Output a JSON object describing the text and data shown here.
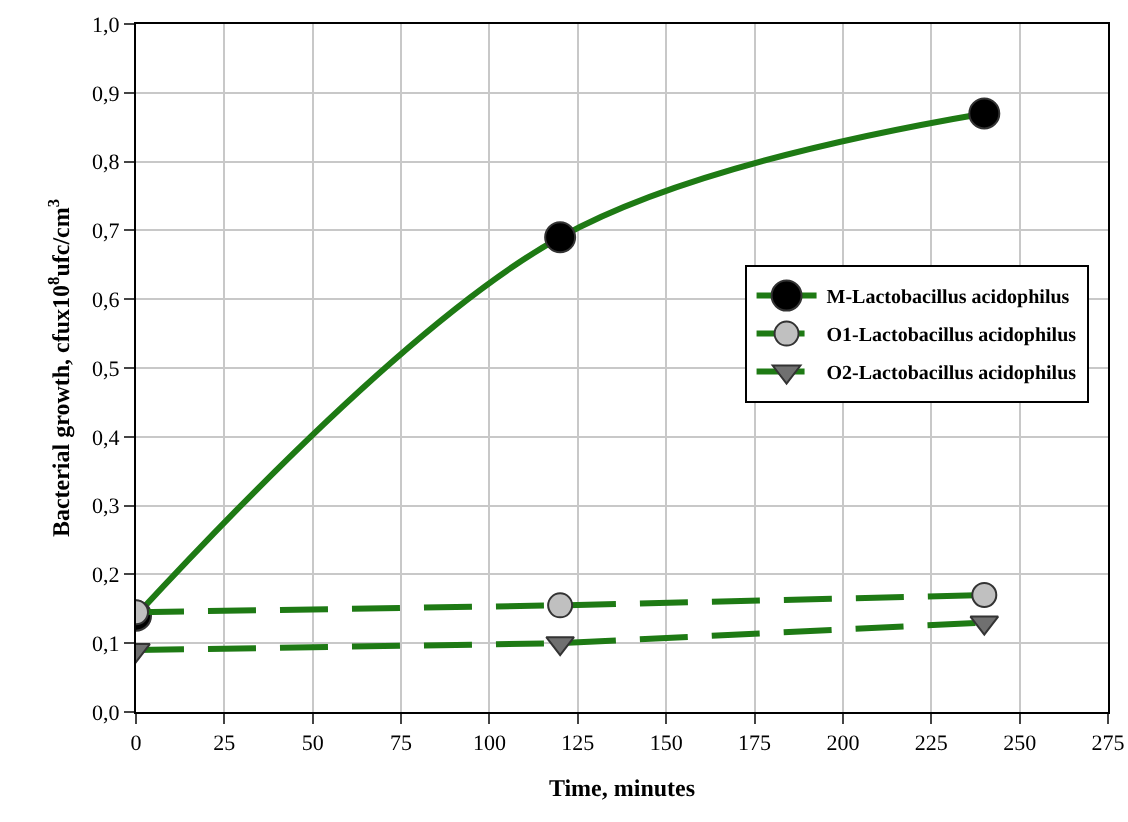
{
  "chart_data": {
    "type": "line",
    "xlabel": "Time, minutes",
    "ylabel": "Bacterial growth, cfux10$^{8}$ufc/cm$^{3}$",
    "x": [
      0,
      120,
      240
    ],
    "series": [
      {
        "name": "M-Lactobacillus acidophilus",
        "color": "#1e7a14",
        "colors": [
          "#000000",
          "#000000",
          "#000000"
        ],
        "marker": "circle",
        "line_style": "solid",
        "values": [
          0.14,
          0.69,
          0.87
        ]
      },
      {
        "name": "O1-Lactobacillus acidophilus",
        "color": "#1e7a14",
        "colors": [
          "#c0c0c0",
          "#c0c0c0",
          "#c0c0c0"
        ],
        "marker": "circle",
        "line_style": "dashed",
        "values": [
          0.145,
          0.155,
          0.17
        ]
      },
      {
        "name": "O2-Lactobacillus acidophilus",
        "color": "#1e7a14",
        "colors": [
          "#707070",
          "#707070",
          "#707070"
        ],
        "marker": "triangle",
        "line_style": "dashed",
        "values": [
          0.09,
          0.1,
          0.13
        ]
      }
    ],
    "xlim": [
      0,
      275
    ],
    "xticks": [
      0,
      25,
      50,
      75,
      100,
      125,
      150,
      175,
      200,
      225,
      250,
      275
    ],
    "ylim": [
      0,
      1
    ],
    "yticks": [
      {
        "value": 0,
        "label": "0,0"
      },
      {
        "value": 0.1,
        "label": "0,1"
      },
      {
        "value": 0.2,
        "label": "0,2"
      },
      {
        "value": 0.3,
        "label": "0,3"
      },
      {
        "value": 0.4,
        "label": "0,4"
      },
      {
        "value": 0.5,
        "label": "0,5"
      },
      {
        "value": 0.6,
        "label": "0,6"
      },
      {
        "value": 0.7,
        "label": "0,7"
      },
      {
        "value": 0.8,
        "label": "0,8"
      },
      {
        "value": 0.9,
        "label": "0,9"
      },
      {
        "value": 1,
        "label": "1,0"
      }
    ],
    "grid": true,
    "legend": "right"
  }
}
